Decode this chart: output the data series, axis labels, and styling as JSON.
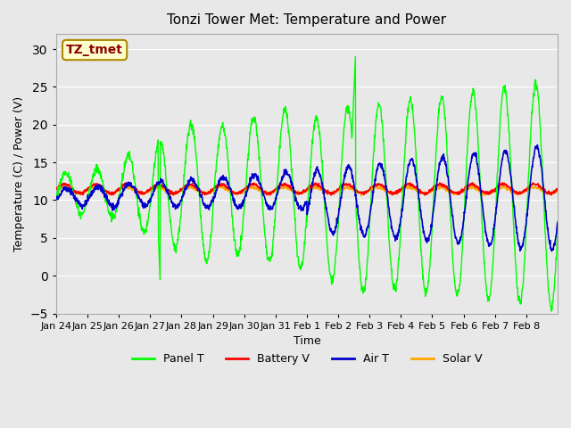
{
  "title": "Tonzi Tower Met: Temperature and Power",
  "xlabel": "Time",
  "ylabel": "Temperature (C) / Power (V)",
  "ylim": [
    -5,
    32
  ],
  "yticks": [
    -5,
    0,
    5,
    10,
    15,
    20,
    25,
    30
  ],
  "x_labels": [
    "Jan 24",
    "Jan 25",
    "Jan 26",
    "Jan 27",
    "Jan 28",
    "Jan 29",
    "Jan 30",
    "Jan 31",
    "Feb 1",
    "Feb 2",
    "Feb 3",
    "Feb 4",
    "Feb 5",
    "Feb 6",
    "Feb 7",
    "Feb 8"
  ],
  "annotation_text": "TZ_tmet",
  "annotation_color": "#8B0000",
  "annotation_bg": "#FFFFCC",
  "annotation_edge": "#AA8800",
  "bg_color": "#E8E8E8",
  "colors": {
    "panel_t": "#00FF00",
    "battery_v": "#FF0000",
    "air_t": "#0000CC",
    "solar_v": "#FFA500"
  },
  "legend_labels": [
    "Panel T",
    "Battery V",
    "Air T",
    "Solar V"
  ]
}
